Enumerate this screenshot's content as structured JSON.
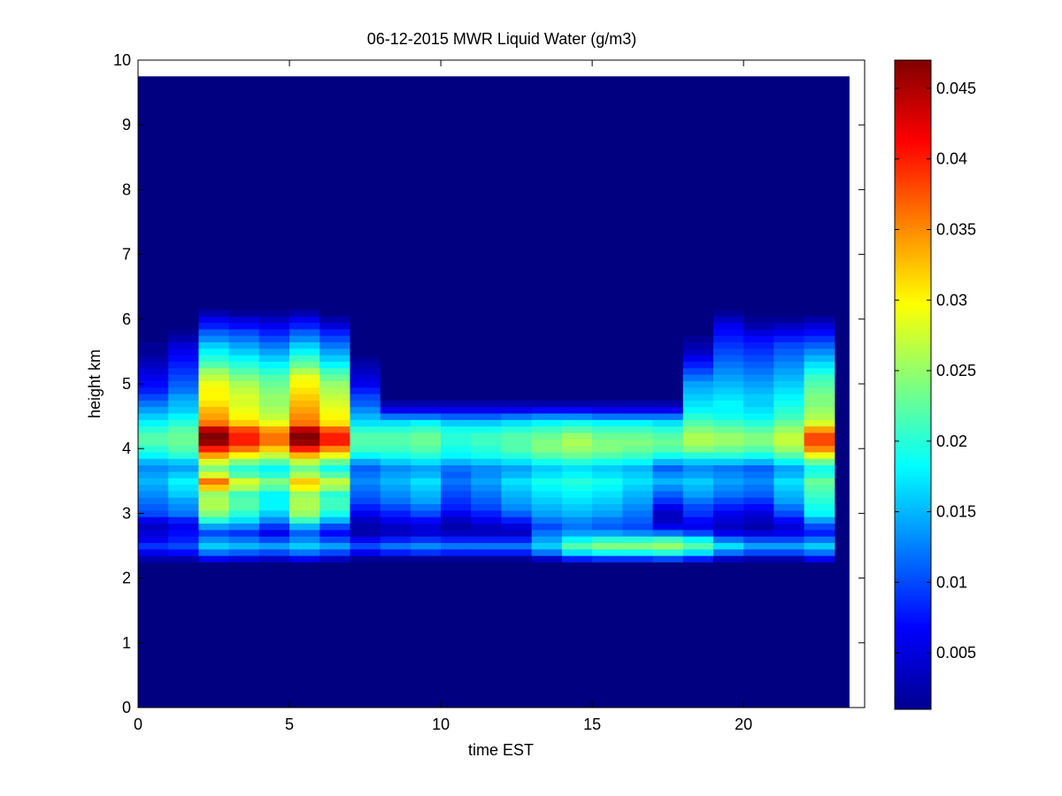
{
  "chart_data": {
    "type": "heatmap",
    "title": "06-12-2015 MWR Liquid Water (g/m3)",
    "xlabel": "time EST",
    "ylabel": "height km",
    "xlim": [
      0,
      24
    ],
    "ylim": [
      0,
      10
    ],
    "x_ticks": [
      0,
      5,
      10,
      15,
      20
    ],
    "x_tick_labels": [
      "0",
      "5",
      "10",
      "15",
      "20"
    ],
    "y_ticks": [
      0,
      1,
      2,
      3,
      4,
      5,
      6,
      7,
      8,
      9,
      10
    ],
    "y_tick_labels": [
      "0",
      "1",
      "2",
      "3",
      "4",
      "5",
      "6",
      "7",
      "8",
      "9",
      "10"
    ],
    "colormap": "jet",
    "clim": [
      0.001,
      0.047
    ],
    "colorbar_ticks": [
      0.005,
      0.01,
      0.015,
      0.02,
      0.025,
      0.03,
      0.035,
      0.04,
      0.045
    ],
    "colorbar_tick_labels": [
      "0.005",
      "0.01",
      "0.015",
      "0.02",
      "0.025",
      "0.03",
      "0.035",
      "0.04",
      "0.045"
    ],
    "data_extent": {
      "time_start": 0,
      "time_end": 23.5,
      "height_top": 9.75
    },
    "time_step_hours": 1,
    "heights_km": [
      2.3,
      2.4,
      2.5,
      2.6,
      2.7,
      2.8,
      2.9,
      3.0,
      3.1,
      3.2,
      3.3,
      3.4,
      3.5,
      3.6,
      3.7,
      3.8,
      3.9,
      4.0,
      4.1,
      4.2,
      4.3,
      4.4,
      4.5,
      4.6,
      4.7,
      4.8,
      4.9,
      5.0,
      5.1,
      5.2,
      5.3,
      5.4,
      5.5,
      5.6,
      5.7,
      5.8,
      5.9,
      6.0,
      6.1
    ],
    "profiles": [
      {
        "time": 0.5,
        "values": [
          0.003,
          0.006,
          0.009,
          0.006,
          0.005,
          0.004,
          0.006,
          0.01,
          0.011,
          0.012,
          0.013,
          0.014,
          0.015,
          0.014,
          0.013,
          0.015,
          0.018,
          0.02,
          0.022,
          0.022,
          0.02,
          0.018,
          0.016,
          0.014,
          0.012,
          0.01,
          0.008,
          0.007,
          0.006,
          0.005,
          0.004,
          0.003,
          0.002,
          0.002,
          0.001,
          0.001,
          0.001,
          0.001,
          0.001
        ]
      },
      {
        "time": 1.5,
        "values": [
          0.003,
          0.007,
          0.01,
          0.008,
          0.007,
          0.006,
          0.008,
          0.012,
          0.013,
          0.014,
          0.016,
          0.017,
          0.018,
          0.016,
          0.014,
          0.016,
          0.02,
          0.022,
          0.023,
          0.023,
          0.022,
          0.02,
          0.018,
          0.016,
          0.015,
          0.014,
          0.012,
          0.011,
          0.01,
          0.009,
          0.008,
          0.007,
          0.006,
          0.005,
          0.003,
          0.002,
          0.001,
          0.001,
          0.001
        ]
      },
      {
        "time": 2.5,
        "values": [
          0.006,
          0.012,
          0.016,
          0.013,
          0.01,
          0.014,
          0.02,
          0.024,
          0.026,
          0.026,
          0.025,
          0.032,
          0.036,
          0.028,
          0.024,
          0.028,
          0.034,
          0.04,
          0.046,
          0.047,
          0.044,
          0.036,
          0.034,
          0.033,
          0.031,
          0.03,
          0.03,
          0.029,
          0.027,
          0.025,
          0.022,
          0.02,
          0.018,
          0.016,
          0.013,
          0.011,
          0.008,
          0.006,
          0.003
        ]
      },
      {
        "time": 3.5,
        "values": [
          0.005,
          0.011,
          0.015,
          0.012,
          0.009,
          0.013,
          0.017,
          0.02,
          0.022,
          0.022,
          0.021,
          0.026,
          0.028,
          0.022,
          0.02,
          0.024,
          0.03,
          0.036,
          0.04,
          0.04,
          0.038,
          0.032,
          0.03,
          0.029,
          0.028,
          0.028,
          0.027,
          0.026,
          0.024,
          0.022,
          0.02,
          0.018,
          0.016,
          0.014,
          0.012,
          0.01,
          0.007,
          0.005,
          0.002
        ]
      },
      {
        "time": 4.5,
        "values": [
          0.004,
          0.01,
          0.014,
          0.01,
          0.006,
          0.009,
          0.013,
          0.016,
          0.018,
          0.018,
          0.018,
          0.022,
          0.024,
          0.02,
          0.018,
          0.022,
          0.027,
          0.032,
          0.036,
          0.036,
          0.034,
          0.029,
          0.027,
          0.026,
          0.025,
          0.025,
          0.024,
          0.023,
          0.022,
          0.02,
          0.018,
          0.016,
          0.014,
          0.012,
          0.01,
          0.008,
          0.006,
          0.004,
          0.002
        ]
      },
      {
        "time": 5.5,
        "values": [
          0.006,
          0.012,
          0.016,
          0.013,
          0.011,
          0.015,
          0.021,
          0.025,
          0.026,
          0.026,
          0.025,
          0.03,
          0.032,
          0.026,
          0.023,
          0.027,
          0.033,
          0.04,
          0.046,
          0.047,
          0.044,
          0.036,
          0.035,
          0.034,
          0.033,
          0.032,
          0.031,
          0.03,
          0.029,
          0.026,
          0.023,
          0.021,
          0.018,
          0.016,
          0.013,
          0.011,
          0.008,
          0.006,
          0.003
        ]
      },
      {
        "time": 6.5,
        "values": [
          0.004,
          0.01,
          0.014,
          0.01,
          0.007,
          0.01,
          0.015,
          0.019,
          0.021,
          0.021,
          0.02,
          0.025,
          0.027,
          0.022,
          0.019,
          0.023,
          0.029,
          0.035,
          0.04,
          0.04,
          0.037,
          0.031,
          0.03,
          0.029,
          0.028,
          0.027,
          0.026,
          0.025,
          0.023,
          0.021,
          0.018,
          0.016,
          0.014,
          0.012,
          0.01,
          0.008,
          0.005,
          0.003,
          0.001
        ]
      },
      {
        "time": 7.5,
        "values": [
          0.002,
          0.006,
          0.01,
          0.006,
          0.003,
          0.003,
          0.004,
          0.006,
          0.008,
          0.01,
          0.011,
          0.012,
          0.013,
          0.012,
          0.011,
          0.014,
          0.018,
          0.021,
          0.022,
          0.022,
          0.02,
          0.017,
          0.015,
          0.013,
          0.011,
          0.01,
          0.008,
          0.006,
          0.005,
          0.004,
          0.003,
          0.002,
          0.001,
          0.001,
          0.001,
          0.001,
          0.001,
          0.001,
          0.001
        ]
      },
      {
        "time": 8.5,
        "values": [
          0.002,
          0.008,
          0.012,
          0.008,
          0.004,
          0.004,
          0.006,
          0.008,
          0.01,
          0.012,
          0.013,
          0.014,
          0.015,
          0.014,
          0.013,
          0.016,
          0.019,
          0.021,
          0.022,
          0.022,
          0.02,
          0.017,
          0.012,
          0.006,
          0.003,
          0.001,
          0.001,
          0.001,
          0.001,
          0.001,
          0.001,
          0.001,
          0.001,
          0.001,
          0.001,
          0.001,
          0.001,
          0.001,
          0.001
        ]
      },
      {
        "time": 9.5,
        "values": [
          0.002,
          0.009,
          0.013,
          0.009,
          0.005,
          0.005,
          0.007,
          0.01,
          0.012,
          0.014,
          0.015,
          0.016,
          0.017,
          0.015,
          0.014,
          0.017,
          0.02,
          0.022,
          0.023,
          0.023,
          0.021,
          0.018,
          0.012,
          0.006,
          0.003,
          0.001,
          0.001,
          0.001,
          0.001,
          0.001,
          0.001,
          0.001,
          0.001,
          0.001,
          0.001,
          0.001,
          0.001,
          0.001,
          0.001
        ]
      },
      {
        "time": 10.5,
        "values": [
          0.002,
          0.008,
          0.012,
          0.008,
          0.004,
          0.003,
          0.004,
          0.006,
          0.008,
          0.009,
          0.01,
          0.011,
          0.012,
          0.011,
          0.012,
          0.015,
          0.018,
          0.019,
          0.02,
          0.02,
          0.019,
          0.016,
          0.011,
          0.006,
          0.003,
          0.001,
          0.001,
          0.001,
          0.001,
          0.001,
          0.001,
          0.001,
          0.001,
          0.001,
          0.001,
          0.001,
          0.001,
          0.001,
          0.001
        ]
      },
      {
        "time": 11.5,
        "values": [
          0.002,
          0.008,
          0.012,
          0.008,
          0.004,
          0.004,
          0.006,
          0.008,
          0.01,
          0.011,
          0.012,
          0.013,
          0.014,
          0.013,
          0.013,
          0.016,
          0.019,
          0.02,
          0.021,
          0.021,
          0.019,
          0.016,
          0.011,
          0.006,
          0.003,
          0.001,
          0.001,
          0.001,
          0.001,
          0.001,
          0.001,
          0.001,
          0.001,
          0.001,
          0.001,
          0.001,
          0.001,
          0.001,
          0.001
        ]
      },
      {
        "time": 12.5,
        "values": [
          0.002,
          0.008,
          0.012,
          0.008,
          0.004,
          0.005,
          0.008,
          0.011,
          0.013,
          0.014,
          0.015,
          0.016,
          0.017,
          0.015,
          0.014,
          0.017,
          0.02,
          0.022,
          0.022,
          0.022,
          0.02,
          0.017,
          0.012,
          0.006,
          0.003,
          0.001,
          0.001,
          0.001,
          0.001,
          0.001,
          0.001,
          0.001,
          0.001,
          0.001,
          0.001,
          0.001,
          0.001,
          0.001,
          0.001
        ]
      },
      {
        "time": 13.5,
        "values": [
          0.004,
          0.012,
          0.016,
          0.014,
          0.012,
          0.01,
          0.012,
          0.014,
          0.015,
          0.016,
          0.017,
          0.018,
          0.019,
          0.017,
          0.016,
          0.019,
          0.022,
          0.024,
          0.024,
          0.023,
          0.021,
          0.018,
          0.013,
          0.007,
          0.003,
          0.001,
          0.001,
          0.001,
          0.001,
          0.001,
          0.001,
          0.001,
          0.001,
          0.001,
          0.001,
          0.001,
          0.001,
          0.001,
          0.001
        ]
      },
      {
        "time": 14.5,
        "values": [
          0.008,
          0.017,
          0.022,
          0.018,
          0.014,
          0.012,
          0.013,
          0.015,
          0.016,
          0.017,
          0.018,
          0.019,
          0.02,
          0.018,
          0.017,
          0.02,
          0.023,
          0.025,
          0.026,
          0.025,
          0.022,
          0.019,
          0.013,
          0.007,
          0.003,
          0.001,
          0.001,
          0.001,
          0.001,
          0.001,
          0.001,
          0.001,
          0.001,
          0.001,
          0.001,
          0.001,
          0.001,
          0.001,
          0.001
        ]
      },
      {
        "time": 15.5,
        "values": [
          0.009,
          0.019,
          0.024,
          0.02,
          0.014,
          0.011,
          0.012,
          0.014,
          0.015,
          0.016,
          0.017,
          0.018,
          0.019,
          0.017,
          0.016,
          0.019,
          0.022,
          0.024,
          0.024,
          0.023,
          0.021,
          0.018,
          0.012,
          0.006,
          0.003,
          0.001,
          0.001,
          0.001,
          0.001,
          0.001,
          0.001,
          0.001,
          0.001,
          0.001,
          0.001,
          0.001,
          0.001,
          0.001,
          0.001
        ]
      },
      {
        "time": 16.5,
        "values": [
          0.009,
          0.019,
          0.024,
          0.02,
          0.013,
          0.01,
          0.011,
          0.012,
          0.013,
          0.014,
          0.015,
          0.016,
          0.017,
          0.016,
          0.015,
          0.018,
          0.021,
          0.023,
          0.024,
          0.023,
          0.021,
          0.018,
          0.012,
          0.006,
          0.003,
          0.001,
          0.001,
          0.001,
          0.001,
          0.001,
          0.001,
          0.001,
          0.001,
          0.001,
          0.001,
          0.001,
          0.001,
          0.001,
          0.001
        ]
      },
      {
        "time": 17.5,
        "values": [
          0.01,
          0.02,
          0.025,
          0.021,
          0.012,
          0.006,
          0.004,
          0.004,
          0.006,
          0.009,
          0.011,
          0.013,
          0.015,
          0.013,
          0.011,
          0.015,
          0.019,
          0.022,
          0.023,
          0.022,
          0.02,
          0.017,
          0.012,
          0.006,
          0.003,
          0.001,
          0.001,
          0.001,
          0.001,
          0.001,
          0.001,
          0.001,
          0.001,
          0.001,
          0.001,
          0.001,
          0.001,
          0.001,
          0.001
        ]
      },
      {
        "time": 18.5,
        "values": [
          0.008,
          0.017,
          0.022,
          0.018,
          0.01,
          0.006,
          0.007,
          0.009,
          0.01,
          0.012,
          0.014,
          0.015,
          0.016,
          0.014,
          0.013,
          0.016,
          0.02,
          0.024,
          0.026,
          0.026,
          0.024,
          0.022,
          0.02,
          0.018,
          0.017,
          0.016,
          0.015,
          0.014,
          0.012,
          0.01,
          0.008,
          0.006,
          0.004,
          0.003,
          0.002,
          0.001,
          0.001,
          0.001,
          0.001
        ]
      },
      {
        "time": 19.5,
        "values": [
          0.004,
          0.012,
          0.017,
          0.012,
          0.006,
          0.004,
          0.005,
          0.006,
          0.008,
          0.01,
          0.012,
          0.013,
          0.014,
          0.013,
          0.012,
          0.016,
          0.02,
          0.023,
          0.025,
          0.025,
          0.023,
          0.021,
          0.019,
          0.018,
          0.018,
          0.017,
          0.016,
          0.015,
          0.014,
          0.013,
          0.012,
          0.011,
          0.01,
          0.009,
          0.008,
          0.007,
          0.006,
          0.004,
          0.002
        ]
      },
      {
        "time": 20.5,
        "values": [
          0.003,
          0.01,
          0.014,
          0.01,
          0.005,
          0.003,
          0.004,
          0.005,
          0.007,
          0.009,
          0.011,
          0.012,
          0.013,
          0.012,
          0.011,
          0.015,
          0.019,
          0.022,
          0.024,
          0.024,
          0.022,
          0.02,
          0.018,
          0.017,
          0.016,
          0.016,
          0.015,
          0.014,
          0.013,
          0.012,
          0.011,
          0.01,
          0.009,
          0.008,
          0.007,
          0.005,
          0.003,
          0.002,
          0.001
        ]
      },
      {
        "time": 21.5,
        "values": [
          0.003,
          0.01,
          0.014,
          0.01,
          0.006,
          0.005,
          0.007,
          0.01,
          0.012,
          0.014,
          0.015,
          0.016,
          0.017,
          0.015,
          0.014,
          0.018,
          0.022,
          0.025,
          0.027,
          0.027,
          0.025,
          0.023,
          0.021,
          0.02,
          0.019,
          0.018,
          0.017,
          0.016,
          0.015,
          0.014,
          0.013,
          0.012,
          0.011,
          0.01,
          0.008,
          0.006,
          0.004,
          0.002,
          0.001
        ]
      },
      {
        "time": 22.5,
        "values": [
          0.006,
          0.012,
          0.016,
          0.012,
          0.008,
          0.01,
          0.014,
          0.018,
          0.019,
          0.02,
          0.021,
          0.022,
          0.023,
          0.02,
          0.019,
          0.023,
          0.029,
          0.035,
          0.038,
          0.038,
          0.034,
          0.028,
          0.026,
          0.025,
          0.024,
          0.024,
          0.023,
          0.022,
          0.021,
          0.019,
          0.017,
          0.015,
          0.013,
          0.011,
          0.009,
          0.007,
          0.005,
          0.003,
          0.001
        ]
      }
    ]
  }
}
